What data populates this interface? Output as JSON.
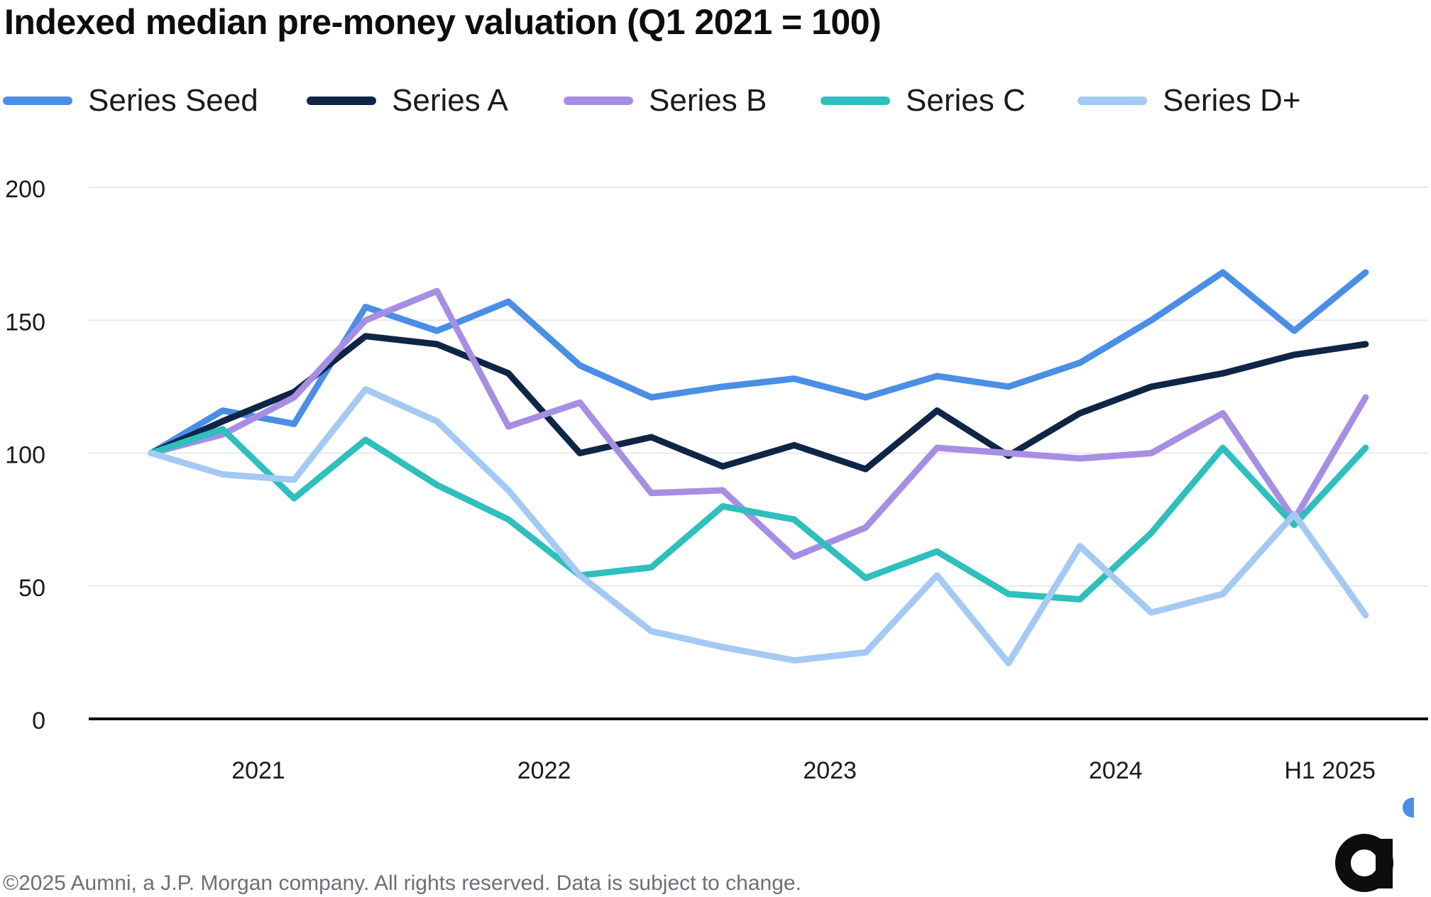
{
  "title": "Indexed median pre-money valuation (Q1 2021 = 100)",
  "footer": "©2025 Aumni, a J.P. Morgan company. All rights reserved. Data is subject to change.",
  "logo": {
    "text": "a"
  },
  "chart_data": {
    "type": "line",
    "title": "Indexed median pre-money valuation (Q1 2021 = 100)",
    "x": [
      1,
      2,
      3,
      4,
      5,
      6,
      7,
      8,
      9,
      10,
      11,
      12,
      13,
      14,
      15,
      16,
      17,
      18
    ],
    "x_ticks": [
      {
        "label": "2021",
        "at": 2.5
      },
      {
        "label": "2022",
        "at": 6.5
      },
      {
        "label": "2023",
        "at": 10.5
      },
      {
        "label": "2024",
        "at": 14.5
      },
      {
        "label": "H1 2025",
        "at": 17.5
      }
    ],
    "yticks": [
      0,
      50,
      100,
      150,
      200
    ],
    "ylim": [
      0,
      200
    ],
    "xlim": [
      0.125,
      18.875
    ],
    "grid": true,
    "legend_position": "top",
    "series": [
      {
        "name": "Series Seed",
        "color": "#4a8ee6",
        "values": [
          100,
          116,
          111,
          155,
          146,
          157,
          133,
          121,
          125,
          128,
          121,
          129,
          125,
          134,
          150,
          168,
          146,
          168
        ]
      },
      {
        "name": "Series A",
        "color": "#0e2546",
        "values": [
          100,
          112,
          123,
          144,
          141,
          130,
          100,
          106,
          95,
          103,
          94,
          116,
          99,
          115,
          125,
          130,
          137,
          141
        ]
      },
      {
        "name": "Series B",
        "color": "#a68fe3",
        "values": [
          100,
          107,
          121,
          150,
          161,
          110,
          119,
          85,
          86,
          61,
          72,
          102,
          100,
          98,
          100,
          115,
          75,
          121
        ]
      },
      {
        "name": "Series C",
        "color": "#2fbfbd",
        "values": [
          100,
          109,
          83,
          105,
          88,
          75,
          54,
          57,
          80,
          75,
          53,
          63,
          47,
          45,
          70,
          102,
          73,
          102
        ]
      },
      {
        "name": "Series D+",
        "color": "#a4c9f3",
        "values": [
          100,
          92,
          90,
          124,
          112,
          86,
          54,
          33,
          27,
          22,
          25,
          54,
          21,
          65,
          40,
          47,
          77,
          39
        ]
      }
    ]
  }
}
